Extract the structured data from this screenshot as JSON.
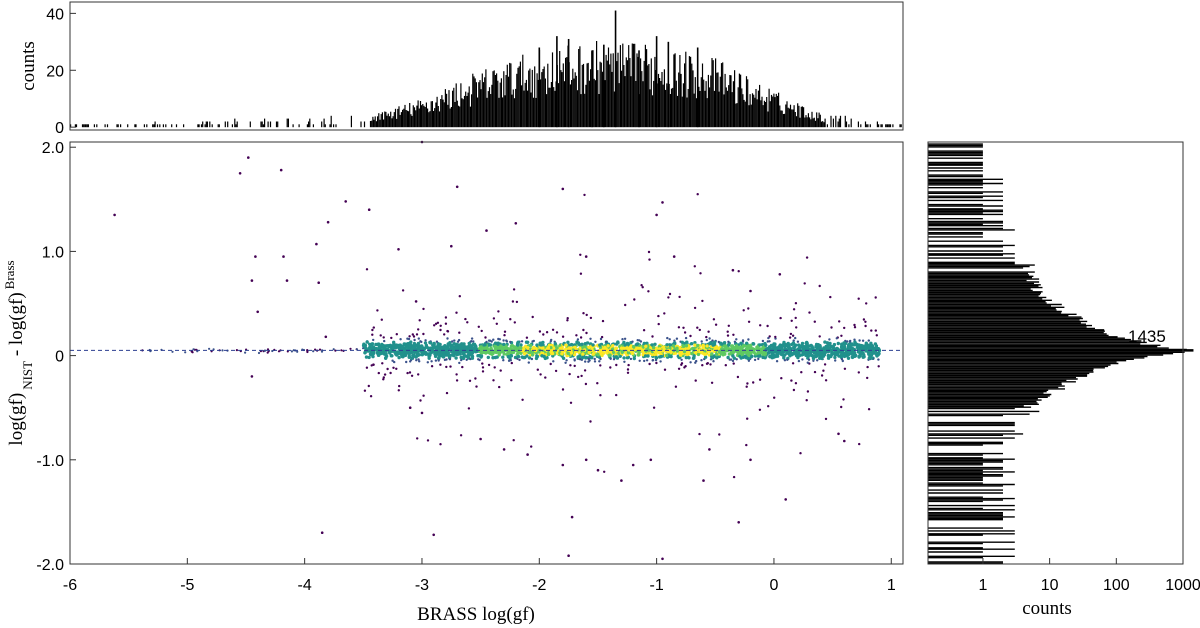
{
  "chart_data": [
    {
      "panel": "top-histogram",
      "type": "bar",
      "xlabel": "",
      "ylabel": "counts",
      "xlim": [
        -6,
        1.1
      ],
      "ylim": [
        -1,
        44
      ],
      "y_ticks": [
        "0",
        "20",
        "40"
      ],
      "y_tick_values": [
        0,
        20,
        40
      ],
      "envelope_x": [
        -6.0,
        -5.0,
        -4.0,
        -3.5,
        -3.0,
        -2.5,
        -2.0,
        -1.5,
        -1.0,
        -0.5,
        0.0,
        0.5,
        1.0
      ],
      "envelope_counts": [
        0.3,
        0.6,
        1.5,
        2.5,
        7,
        14,
        19,
        21,
        20,
        17,
        9,
        2,
        0.2
      ],
      "spikes": [
        {
          "x": -1.35,
          "count": 41
        },
        {
          "x": -1.85,
          "count": 32
        },
        {
          "x": -1.0,
          "count": 32
        },
        {
          "x": -1.75,
          "count": 31
        },
        {
          "x": -0.9,
          "count": 30
        },
        {
          "x": -1.45,
          "count": 29
        },
        {
          "x": -2.0,
          "count": 28
        },
        {
          "x": -0.65,
          "count": 28
        },
        {
          "x": -1.55,
          "count": 27
        },
        {
          "x": -1.15,
          "count": 27
        }
      ]
    },
    {
      "panel": "scatter",
      "type": "scatter",
      "xlabel": "BRASS log(gf)",
      "ylabel_parts": [
        "log(gf)",
        "NIST",
        " - log(gf)",
        "Brass"
      ],
      "xlim": [
        -6,
        1.1
      ],
      "ylim": [
        -2.0,
        2.05
      ],
      "x_ticks": [
        "-6",
        "-5",
        "-4",
        "-3",
        "-2",
        "-1",
        "0",
        "1"
      ],
      "x_tick_values": [
        -6,
        -5,
        -4,
        -3,
        -2,
        -1,
        0,
        1
      ],
      "y_ticks": [
        "2.0",
        "1.0",
        "0",
        "-1.0",
        "-2.0"
      ],
      "y_tick_values": [
        2.0,
        1.0,
        0,
        -1.0,
        -2.0
      ],
      "reference_line_y": 0.05,
      "colormap": [
        "#440154",
        "#3b528b",
        "#21918c",
        "#5ec962",
        "#fde725"
      ],
      "outliers": [
        [
          -5.62,
          1.35
        ],
        [
          -4.55,
          1.75
        ],
        [
          -4.48,
          1.9
        ],
        [
          -4.2,
          1.78
        ],
        [
          -3.65,
          1.48
        ],
        [
          -3.45,
          1.4
        ],
        [
          -3.0,
          2.05
        ],
        [
          -2.7,
          1.62
        ],
        [
          -1.8,
          1.6
        ],
        [
          -1.0,
          1.35
        ],
        [
          -0.95,
          1.47
        ],
        [
          -4.45,
          0.72
        ],
        [
          -4.42,
          0.95
        ],
        [
          -4.18,
          0.95
        ],
        [
          -4.15,
          0.72
        ],
        [
          -3.9,
          1.07
        ],
        [
          -3.88,
          0.7
        ],
        [
          -3.8,
          1.28
        ],
        [
          -4.4,
          0.42
        ],
        [
          -4.45,
          -0.2
        ],
        [
          -3.85,
          -1.7
        ],
        [
          -3.82,
          0.18
        ],
        [
          -3.1,
          -0.5
        ],
        [
          -3.0,
          -0.55
        ],
        [
          -2.9,
          -1.72
        ],
        [
          -2.5,
          -0.8
        ],
        [
          -2.3,
          -0.9
        ],
        [
          -2.1,
          -0.95
        ],
        [
          -1.8,
          -1.05
        ],
        [
          -1.75,
          -1.92
        ],
        [
          -1.72,
          -1.55
        ],
        [
          -1.6,
          -1.0
        ],
        [
          -1.5,
          -1.1
        ],
        [
          -1.3,
          -1.2
        ],
        [
          -1.2,
          -1.05
        ],
        [
          -1.05,
          -1.0
        ],
        [
          -0.95,
          -1.95
        ],
        [
          -0.6,
          -1.2
        ],
        [
          -0.55,
          -0.9
        ],
        [
          -0.3,
          -1.6
        ],
        [
          -0.2,
          -1.0
        ],
        [
          0.1,
          -1.38
        ],
        [
          0.55,
          -0.75
        ],
        [
          0.6,
          -0.82
        ],
        [
          0.05,
          0.78
        ],
        [
          -0.2,
          0.62
        ],
        [
          -1.6,
          0.95
        ],
        [
          -2.75,
          1.05
        ],
        [
          -3.2,
          1.02
        ],
        [
          -2.2,
          1.27
        ],
        [
          -2.45,
          1.2
        ],
        [
          -3.05,
          0.52
        ],
        [
          -0.85,
          0.95
        ],
        [
          -0.35,
          0.82
        ]
      ],
      "scatter_band": {
        "x_range": [
          -3.5,
          0.9
        ],
        "y_spread": 0.6,
        "peak_x": -1.3
      },
      "sparse_tail": {
        "x_range": [
          -5.4,
          -3.5
        ]
      }
    },
    {
      "panel": "right-histogram",
      "type": "bar",
      "orientation": "horizontal",
      "xlabel": "counts",
      "xscale": "log",
      "xlim": [
        0.15,
        1000
      ],
      "x_ticks": [
        "1",
        "10",
        "100",
        "1000"
      ],
      "x_tick_values": [
        1,
        10,
        100,
        1000
      ],
      "peak_label": "1435",
      "peak_count": 1435,
      "peak_y": 0.05,
      "profile": [
        {
          "y": 0.05,
          "count": 1435
        },
        {
          "y": 0.1,
          "count": 400
        },
        {
          "y": 0.0,
          "count": 380
        },
        {
          "y": 0.15,
          "count": 180
        },
        {
          "y": -0.05,
          "count": 160
        },
        {
          "y": 0.2,
          "count": 90
        },
        {
          "y": -0.1,
          "count": 80
        },
        {
          "y": 0.3,
          "count": 40
        },
        {
          "y": -0.2,
          "count": 30
        },
        {
          "y": 0.45,
          "count": 15
        },
        {
          "y": -0.35,
          "count": 12
        },
        {
          "y": 0.65,
          "count": 7
        },
        {
          "y": -0.5,
          "count": 5
        },
        {
          "y": 0.9,
          "count": 4
        },
        {
          "y": -0.7,
          "count": 3
        },
        {
          "y": 1.2,
          "count": 2
        },
        {
          "y": -1.0,
          "count": 2
        },
        {
          "y": 1.9,
          "count": 1
        },
        {
          "y": -1.9,
          "count": 2
        }
      ]
    }
  ]
}
